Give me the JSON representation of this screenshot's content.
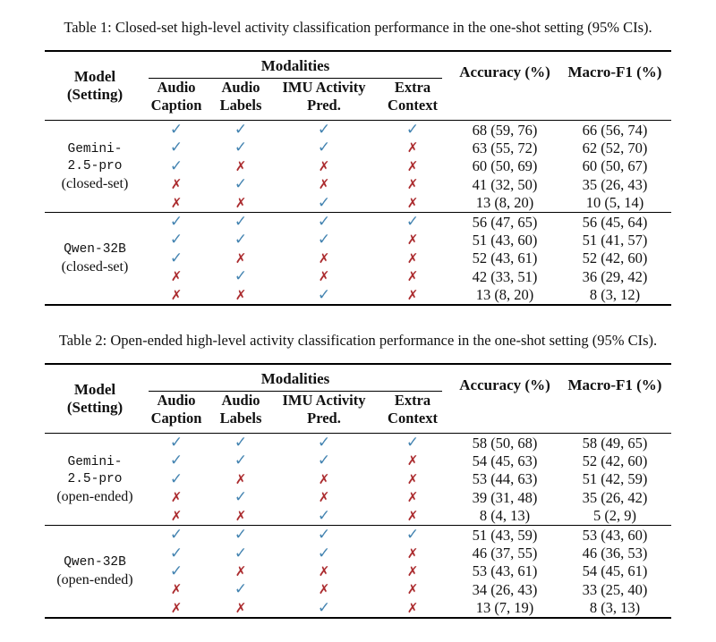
{
  "colors": {
    "check": "#4484b1",
    "cross": "#ab2b2e",
    "text": "#111111",
    "background": "#ffffff",
    "rule": "#000000"
  },
  "glyphs": {
    "check": "✓",
    "cross": "✗",
    "check_name": "check-icon",
    "cross_name": "cross-icon"
  },
  "tables": [
    {
      "caption": "Table 1: Closed-set high-level activity classification performance in the one-shot setting (95% CIs).",
      "header": {
        "model": "Model",
        "setting": "(Setting)",
        "modalities": "Modalities",
        "subcols": [
          {
            "line1": "Audio",
            "line2": "Caption"
          },
          {
            "line1": "Audio",
            "line2": "Labels"
          },
          {
            "line1": "IMU Activity",
            "line2": "Pred."
          },
          {
            "line1": "Extra",
            "line2": "Context"
          }
        ],
        "accuracy": "Accuracy (%)",
        "macro_f1": "Macro-F1 (%)"
      },
      "groups": [
        {
          "model_lines": [
            "Gemini-",
            "2.5-pro"
          ],
          "setting": "(closed-set)",
          "rows": [
            {
              "mods": [
                true,
                true,
                true,
                true
              ],
              "acc": "68 (59, 76)",
              "f1": "66 (56, 74)"
            },
            {
              "mods": [
                true,
                true,
                true,
                false
              ],
              "acc": "63 (55, 72)",
              "f1": "62 (52, 70)"
            },
            {
              "mods": [
                true,
                false,
                false,
                false
              ],
              "acc": "60 (50, 69)",
              "f1": "60 (50, 67)"
            },
            {
              "mods": [
                false,
                true,
                false,
                false
              ],
              "acc": "41 (32, 50)",
              "f1": "35 (26, 43)"
            },
            {
              "mods": [
                false,
                false,
                true,
                false
              ],
              "acc": "13 (8, 20)",
              "f1": "10 (5, 14)"
            }
          ]
        },
        {
          "model_lines": [
            "Qwen-32B"
          ],
          "setting": "(closed-set)",
          "rows": [
            {
              "mods": [
                true,
                true,
                true,
                true
              ],
              "acc": "56 (47, 65)",
              "f1": "56 (45, 64)"
            },
            {
              "mods": [
                true,
                true,
                true,
                false
              ],
              "acc": "51 (43, 60)",
              "f1": "51 (41, 57)"
            },
            {
              "mods": [
                true,
                false,
                false,
                false
              ],
              "acc": "52 (43, 61)",
              "f1": "52 (42, 60)"
            },
            {
              "mods": [
                false,
                true,
                false,
                false
              ],
              "acc": "42 (33, 51)",
              "f1": "36 (29, 42)"
            },
            {
              "mods": [
                false,
                false,
                true,
                false
              ],
              "acc": "13 (8, 20)",
              "f1": "8 (3, 12)"
            }
          ]
        }
      ]
    },
    {
      "caption": "Table 2: Open-ended high-level activity classification performance in the one-shot setting (95% CIs).",
      "header": {
        "model": "Model",
        "setting": "(Setting)",
        "modalities": "Modalities",
        "subcols": [
          {
            "line1": "Audio",
            "line2": "Caption"
          },
          {
            "line1": "Audio",
            "line2": "Labels"
          },
          {
            "line1": "IMU Activity",
            "line2": "Pred."
          },
          {
            "line1": "Extra",
            "line2": "Context"
          }
        ],
        "accuracy": "Accuracy (%)",
        "macro_f1": "Macro-F1 (%)"
      },
      "groups": [
        {
          "model_lines": [
            "Gemini-",
            "2.5-pro"
          ],
          "setting": "(open-ended)",
          "rows": [
            {
              "mods": [
                true,
                true,
                true,
                true
              ],
              "acc": "58 (50, 68)",
              "f1": "58 (49, 65)"
            },
            {
              "mods": [
                true,
                true,
                true,
                false
              ],
              "acc": "54 (45, 63)",
              "f1": "52 (42, 60)"
            },
            {
              "mods": [
                true,
                false,
                false,
                false
              ],
              "acc": "53 (44, 63)",
              "f1": "51 (42, 59)"
            },
            {
              "mods": [
                false,
                true,
                false,
                false
              ],
              "acc": "39 (31, 48)",
              "f1": "35 (26, 42)"
            },
            {
              "mods": [
                false,
                false,
                true,
                false
              ],
              "acc": "8 (4, 13)",
              "f1": "5 (2, 9)"
            }
          ]
        },
        {
          "model_lines": [
            "Qwen-32B"
          ],
          "setting": "(open-ended)",
          "rows": [
            {
              "mods": [
                true,
                true,
                true,
                true
              ],
              "acc": "51 (43, 59)",
              "f1": "53 (43, 60)"
            },
            {
              "mods": [
                true,
                true,
                true,
                false
              ],
              "acc": "46 (37, 55)",
              "f1": "46 (36, 53)"
            },
            {
              "mods": [
                true,
                false,
                false,
                false
              ],
              "acc": "53 (43, 61)",
              "f1": "54 (45, 61)"
            },
            {
              "mods": [
                false,
                true,
                false,
                false
              ],
              "acc": "34 (26, 43)",
              "f1": "33 (25, 40)"
            },
            {
              "mods": [
                false,
                false,
                true,
                false
              ],
              "acc": "13 (7, 19)",
              "f1": "8 (3, 13)"
            }
          ]
        }
      ]
    }
  ]
}
